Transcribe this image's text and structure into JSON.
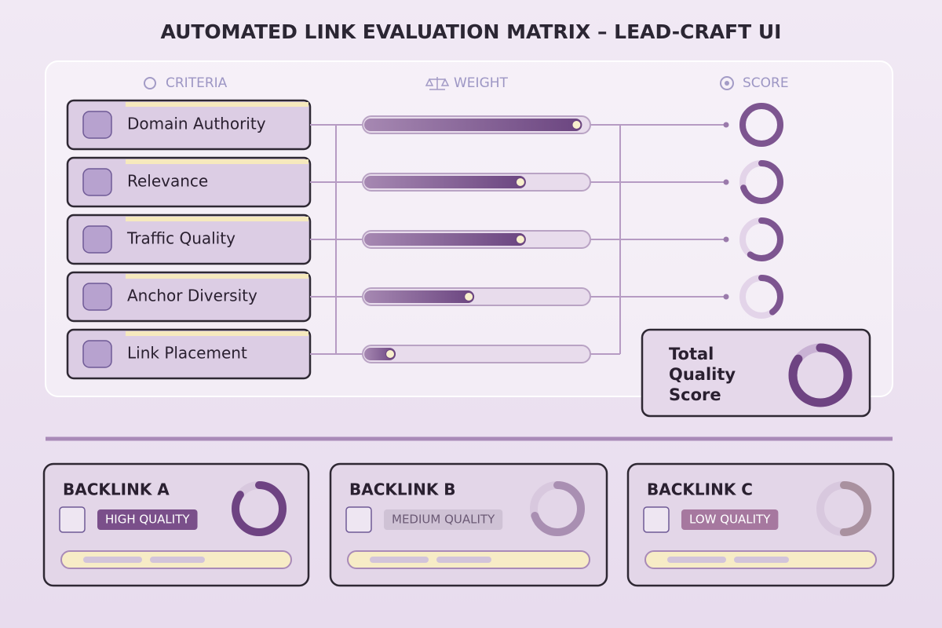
{
  "title": "AUTOMATED LINK EVALUATION MATRIX – LEAD-CRAFT UI",
  "headers": {
    "criteria": "CRITERIA",
    "weight": "WEIGHT",
    "score": "SCORE"
  },
  "criteria": [
    {
      "label": "Domain Authority",
      "weight": 0.97,
      "score": 1.0
    },
    {
      "label": "Relevance",
      "weight": 0.72,
      "score": 0.7
    },
    {
      "label": "Traffic Quality",
      "weight": 0.72,
      "score": 0.6
    },
    {
      "label": "Anchor Diversity",
      "weight": 0.49,
      "score": 0.4
    },
    {
      "label": "Link Placement",
      "weight": 0.14
    }
  ],
  "total": {
    "label": "Total Quality Score",
    "score": 0.85
  },
  "backlinks": [
    {
      "name": "BACKLINK A",
      "quality": "HIGH QUALITY",
      "score": 0.85
    },
    {
      "name": "BACKLINK B",
      "quality": "MEDIUM QUALITY",
      "score": 0.7
    },
    {
      "name": "BACKLINK C",
      "quality": "LOW QUALITY",
      "score": 0.5
    }
  ]
}
